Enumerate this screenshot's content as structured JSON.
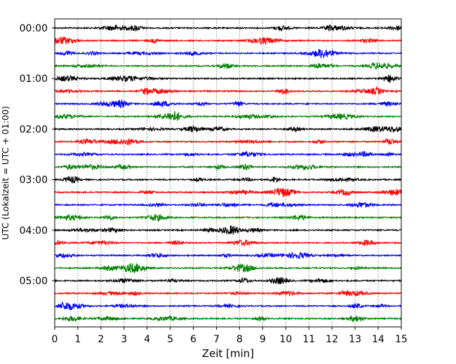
{
  "chart_data": {
    "type": "line",
    "title": "",
    "xlabel": "Zeit  [min]",
    "ylabel": "UTC (Lokalzeit = UTC + 01:00)",
    "xlim": [
      0,
      15
    ],
    "x_ticks": [
      "0",
      "1",
      "2",
      "3",
      "4",
      "5",
      "6",
      "7",
      "8",
      "9",
      "10",
      "11",
      "12",
      "13",
      "14",
      "15"
    ],
    "y_ticks": [
      "00:00",
      "01:00",
      "02:00",
      "03:00",
      "04:00",
      "05:00"
    ],
    "trace_interval_min": 15,
    "trace_count": 24,
    "trace_colors": [
      "#000000",
      "#ff0000",
      "#0000ff",
      "#008000"
    ],
    "vertical_grid": "dotted",
    "description_kind": "seismogram helicorder"
  }
}
